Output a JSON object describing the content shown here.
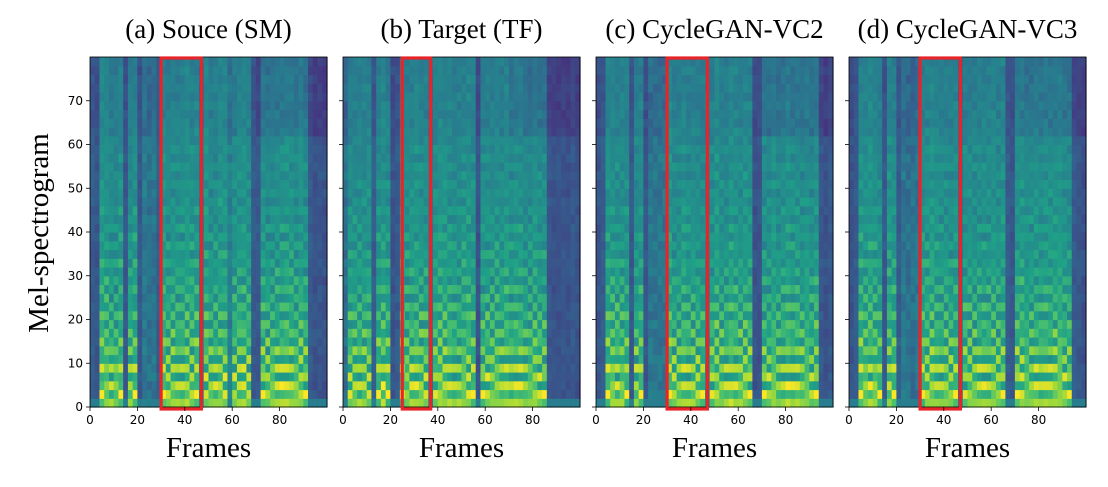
{
  "chart_data": {
    "type": "heatmap",
    "ylabel": "Mel-spectrogram",
    "colormap": [
      "#440154",
      "#46327e",
      "#365c8d",
      "#277f8e",
      "#1fa187",
      "#4ac16d",
      "#a0da39",
      "#fde725"
    ],
    "highlight_color": "#e8242a",
    "panels": [
      {
        "title": "(a) Souce (SM)",
        "xlabel": "Frames",
        "xlim": [
          0,
          100
        ],
        "ylim": [
          0,
          80
        ],
        "xticks": [
          0,
          20,
          40,
          60,
          80
        ],
        "yticks": [
          0,
          10,
          20,
          30,
          40,
          50,
          60,
          70
        ],
        "highlight": {
          "x_start": 30,
          "x_end": 47
        },
        "voiced": [
          [
            5,
            13
          ],
          [
            16,
            19
          ],
          [
            31,
            45
          ],
          [
            48,
            58
          ],
          [
            60,
            68
          ],
          [
            72,
            92
          ]
        ],
        "dark_gaps": [
          [
            1,
            4
          ],
          [
            14,
            15
          ],
          [
            20,
            22
          ],
          [
            29,
            30
          ],
          [
            69,
            71
          ],
          [
            93,
            100
          ]
        ]
      },
      {
        "title": "(b) Target (TF)",
        "xlabel": "Frames",
        "xlim": [
          0,
          100
        ],
        "ylim": [
          0,
          80
        ],
        "xticks": [
          0,
          20,
          40,
          60,
          80
        ],
        "yticks": [
          0,
          10,
          20,
          30,
          40,
          50,
          60,
          70
        ],
        "highlight": {
          "x_start": 25,
          "x_end": 37
        },
        "voiced": [
          [
            2,
            12
          ],
          [
            15,
            19
          ],
          [
            25,
            36
          ],
          [
            38,
            55
          ],
          [
            58,
            86
          ]
        ],
        "dark_gaps": [
          [
            13,
            14
          ],
          [
            20,
            23
          ],
          [
            56,
            57
          ],
          [
            87,
            100
          ]
        ]
      },
      {
        "title": "(c) CycleGAN-VC2",
        "xlabel": "Frames",
        "xlim": [
          0,
          100
        ],
        "ylim": [
          0,
          80
        ],
        "xticks": [
          0,
          20,
          40,
          60,
          80
        ],
        "yticks": [
          0,
          10,
          20,
          30,
          40,
          50,
          60,
          70
        ],
        "highlight": {
          "x_start": 30,
          "x_end": 47
        },
        "voiced": [
          [
            5,
            13
          ],
          [
            16,
            19
          ],
          [
            31,
            45
          ],
          [
            48,
            66
          ],
          [
            70,
            94
          ]
        ],
        "dark_gaps": [
          [
            1,
            4
          ],
          [
            14,
            15
          ],
          [
            20,
            22
          ],
          [
            67,
            69
          ],
          [
            95,
            100
          ]
        ]
      },
      {
        "title": "(d) CycleGAN-VC3",
        "xlabel": "Frames",
        "xlim": [
          0,
          100
        ],
        "ylim": [
          0,
          80
        ],
        "xticks": [
          0,
          20,
          40,
          60,
          80
        ],
        "yticks": [
          0,
          10,
          20,
          30,
          40,
          50,
          60,
          70
        ],
        "highlight": {
          "x_start": 30,
          "x_end": 47
        },
        "voiced": [
          [
            5,
            13
          ],
          [
            16,
            19
          ],
          [
            31,
            45
          ],
          [
            48,
            66
          ],
          [
            70,
            94
          ]
        ],
        "dark_gaps": [
          [
            1,
            4
          ],
          [
            14,
            15
          ],
          [
            20,
            22
          ],
          [
            67,
            69
          ],
          [
            95,
            100
          ]
        ]
      }
    ]
  }
}
